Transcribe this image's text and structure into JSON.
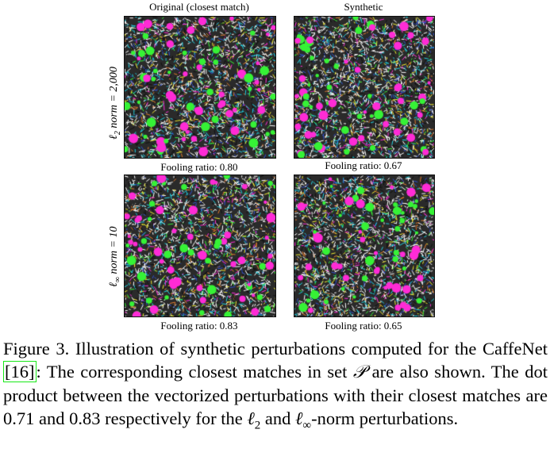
{
  "figure": {
    "column_headers": [
      "Original (closest match)",
      "Synthetic"
    ],
    "row_labels": [
      {
        "symbol": "ℓ",
        "subscript": "2",
        "text": " norm = 2,000"
      },
      {
        "symbol": "ℓ",
        "subscript": "∞",
        "text": " norm = 10"
      }
    ],
    "panels": [
      {
        "row": 0,
        "col": 0,
        "fooling_ratio": "Fooling ratio: 0.80"
      },
      {
        "row": 0,
        "col": 1,
        "fooling_ratio": "Fooling ratio: 0.67"
      },
      {
        "row": 1,
        "col": 0,
        "fooling_ratio": "Fooling ratio: 0.83"
      },
      {
        "row": 1,
        "col": 1,
        "fooling_ratio": "Fooling ratio: 0.65"
      }
    ],
    "texture_colors": [
      "#ff2bd6",
      "#36f236",
      "#1fd0e0",
      "#f0ec30",
      "#ffffff",
      "#101010",
      "#3050d0",
      "#e07a2a"
    ]
  },
  "caption": {
    "lead": "Figure 3. Illustration of synthetic perturbations computed for the CaffeNet ",
    "ref": "[16]",
    "mid": ": The corresponding closest matches in set ",
    "set_symbol": "𝒫",
    "mid2": " are also shown. The dot product between the vectorized perturbations with their closest matches are 0.71 and 0.83 respectively for the ",
    "l2": "ℓ",
    "l2_sub": "2",
    "and": " and ",
    "linf": "ℓ",
    "linf_sub": "∞",
    "tail": "-norm perturbations."
  }
}
